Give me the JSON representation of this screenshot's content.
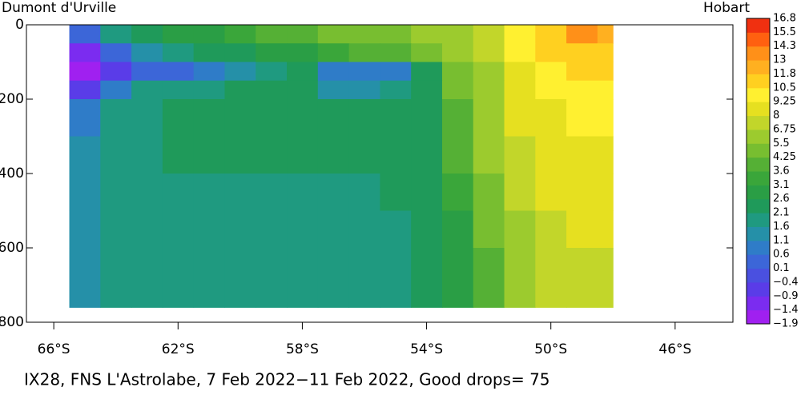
{
  "chart_data": {
    "type": "heatmap",
    "left_label": "Dumont d'Urville",
    "right_label": "Hobart",
    "caption": "IX28, FNS L'Astrolabe,  7 Feb 2022−11 Feb 2022, Good drops= 75",
    "xlim": [
      -66.88,
      -44.14
    ],
    "ylim": [
      0,
      800
    ],
    "xticks": [
      {
        "value": -66,
        "label": "66°S"
      },
      {
        "value": -62,
        "label": "62°S"
      },
      {
        "value": -58,
        "label": "58°S"
      },
      {
        "value": -54,
        "label": "54°S"
      },
      {
        "value": -50,
        "label": "50°S"
      },
      {
        "value": -46,
        "label": "46°S"
      }
    ],
    "yticks": [
      0,
      200,
      400,
      600,
      800
    ],
    "x_edges": [
      -65.5,
      -64.5,
      -63.5,
      -62.5,
      -61.5,
      -60.5,
      -59.5,
      -58.5,
      -57.5,
      -56.5,
      -55.5,
      -54.5,
      -53.5,
      -52.5,
      -51.5,
      -50.5,
      -49.5,
      -48.5,
      -48
    ],
    "y_edges": [
      0,
      50,
      100,
      150,
      200,
      300,
      400,
      500,
      600,
      760
    ],
    "values": [
      [
        0.5,
        1.8,
        2.3,
        2.6,
        2.9,
        3.2,
        3.6,
        4.0,
        4.4,
        4.8,
        5.2,
        5.6,
        6.2,
        7.5,
        9.5,
        11.5,
        13.5,
        12.5
      ],
      [
        -1.2,
        0.2,
        1.5,
        1.8,
        2.1,
        2.4,
        2.7,
        3.0,
        3.3,
        3.6,
        4.0,
        4.4,
        5.5,
        7.0,
        9.5,
        11.0,
        11.5,
        11.5
      ],
      [
        -1.5,
        -0.6,
        0.4,
        0.5,
        0.8,
        1.2,
        1.8,
        2.2,
        1.0,
        0.8,
        0.9,
        2.5,
        4.5,
        6.5,
        9.0,
        10.0,
        10.5,
        10.5
      ],
      [
        -0.6,
        0.9,
        1.9,
        2.0,
        2.0,
        2.1,
        2.1,
        2.1,
        1.5,
        1.4,
        1.6,
        2.3,
        4.3,
        6.3,
        8.5,
        9.5,
        10.0,
        10.0
      ],
      [
        0.8,
        1.7,
        2.0,
        2.1,
        2.1,
        2.1,
        2.1,
        2.1,
        2.1,
        2.1,
        2.1,
        2.2,
        4.0,
        6.0,
        8.0,
        9.0,
        9.3,
        9.3
      ],
      [
        1.2,
        1.8,
        2.0,
        2.1,
        2.1,
        2.1,
        2.1,
        2.1,
        2.1,
        2.1,
        2.1,
        2.2,
        3.6,
        5.6,
        7.5,
        8.7,
        9.0,
        9.0
      ],
      [
        1.3,
        1.8,
        2.0,
        2.0,
        2.0,
        2.0,
        2.0,
        2.0,
        2.0,
        2.0,
        2.1,
        2.2,
        3.3,
        5.0,
        7.0,
        8.3,
        8.7,
        8.8
      ],
      [
        1.4,
        1.8,
        1.9,
        1.9,
        1.9,
        1.9,
        1.9,
        1.9,
        2.0,
        2.0,
        2.0,
        2.2,
        3.0,
        4.5,
        6.5,
        7.8,
        8.3,
        8.2
      ],
      [
        1.4,
        1.7,
        1.8,
        1.8,
        1.8,
        1.8,
        1.8,
        1.8,
        1.9,
        1.9,
        2.0,
        2.1,
        2.8,
        4.2,
        6.0,
        7.2,
        7.6,
        7.6
      ]
    ],
    "colorbar": {
      "ticks": [
        {
          "value": -1.9,
          "label": "−1.9"
        },
        {
          "value": -1.4,
          "label": "−1.4"
        },
        {
          "value": -0.9,
          "label": "−0.9"
        },
        {
          "value": -0.4,
          "label": "−0.4"
        },
        0.1,
        0.6,
        1.1,
        1.6,
        2.1,
        2.6,
        3.1,
        3.6,
        4.25,
        5.5,
        6.75,
        8,
        9.25,
        10.5,
        11.8,
        13,
        14.3,
        15.5,
        16.8
      ],
      "colors": [
        "#a020f0",
        "#7b2cf0",
        "#5a3ce8",
        "#4a50e0",
        "#3c66d8",
        "#2f7cc8",
        "#2590a8",
        "#1f9a80",
        "#1f9a5a",
        "#2a9e45",
        "#3aa63a",
        "#55b035",
        "#78be30",
        "#9ccb2e",
        "#c2d62a",
        "#e6e020",
        "#fff030",
        "#ffd020",
        "#ffb020",
        "#ff9018",
        "#ff6010",
        "#f03010"
      ]
    }
  }
}
